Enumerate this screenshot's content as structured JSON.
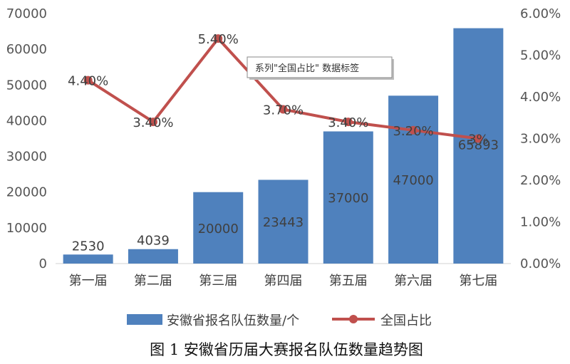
{
  "chart_data": {
    "type": "bar+line",
    "categories": [
      "第一届",
      "第二届",
      "第三届",
      "第四届",
      "第五届",
      "第六届",
      "第七届"
    ],
    "series": [
      {
        "name": "安徽省报名队伍数量/个",
        "type": "bar",
        "axis": "left",
        "values": [
          2530,
          4039,
          20000,
          23443,
          37000,
          47000,
          65893
        ],
        "labels": [
          "2530",
          "4039",
          "20000",
          "23443",
          "37000",
          "47000",
          "65893"
        ],
        "color": "#4f81bd"
      },
      {
        "name": "全国占比",
        "type": "line",
        "axis": "right",
        "values": [
          0.044,
          0.034,
          0.054,
          0.037,
          0.034,
          0.032,
          0.03
        ],
        "labels": [
          "4.40%",
          "3.40%",
          "5.40%",
          "3.70%",
          "3.40%",
          "3.20%",
          "3%"
        ],
        "color": "#c0504d"
      }
    ],
    "y_left": {
      "range": [
        0,
        70000
      ],
      "ticks": [
        0,
        10000,
        20000,
        30000,
        40000,
        50000,
        60000,
        70000
      ],
      "tick_labels": [
        "0",
        "10000",
        "20000",
        "30000",
        "40000",
        "50000",
        "60000",
        "70000"
      ]
    },
    "y_right": {
      "range": [
        0,
        0.06
      ],
      "ticks": [
        0,
        0.01,
        0.02,
        0.03,
        0.04,
        0.05,
        0.06
      ],
      "tick_labels": [
        "0.00%",
        "1.00%",
        "2.00%",
        "3.00%",
        "4.00%",
        "5.00%",
        "6.00%"
      ]
    },
    "grid": false,
    "legend": "bottom",
    "tooltip": "系列\"全国占比\" 数据标签",
    "caption": "图 1  安徽省历届大赛报名队伍数量趋势图"
  }
}
